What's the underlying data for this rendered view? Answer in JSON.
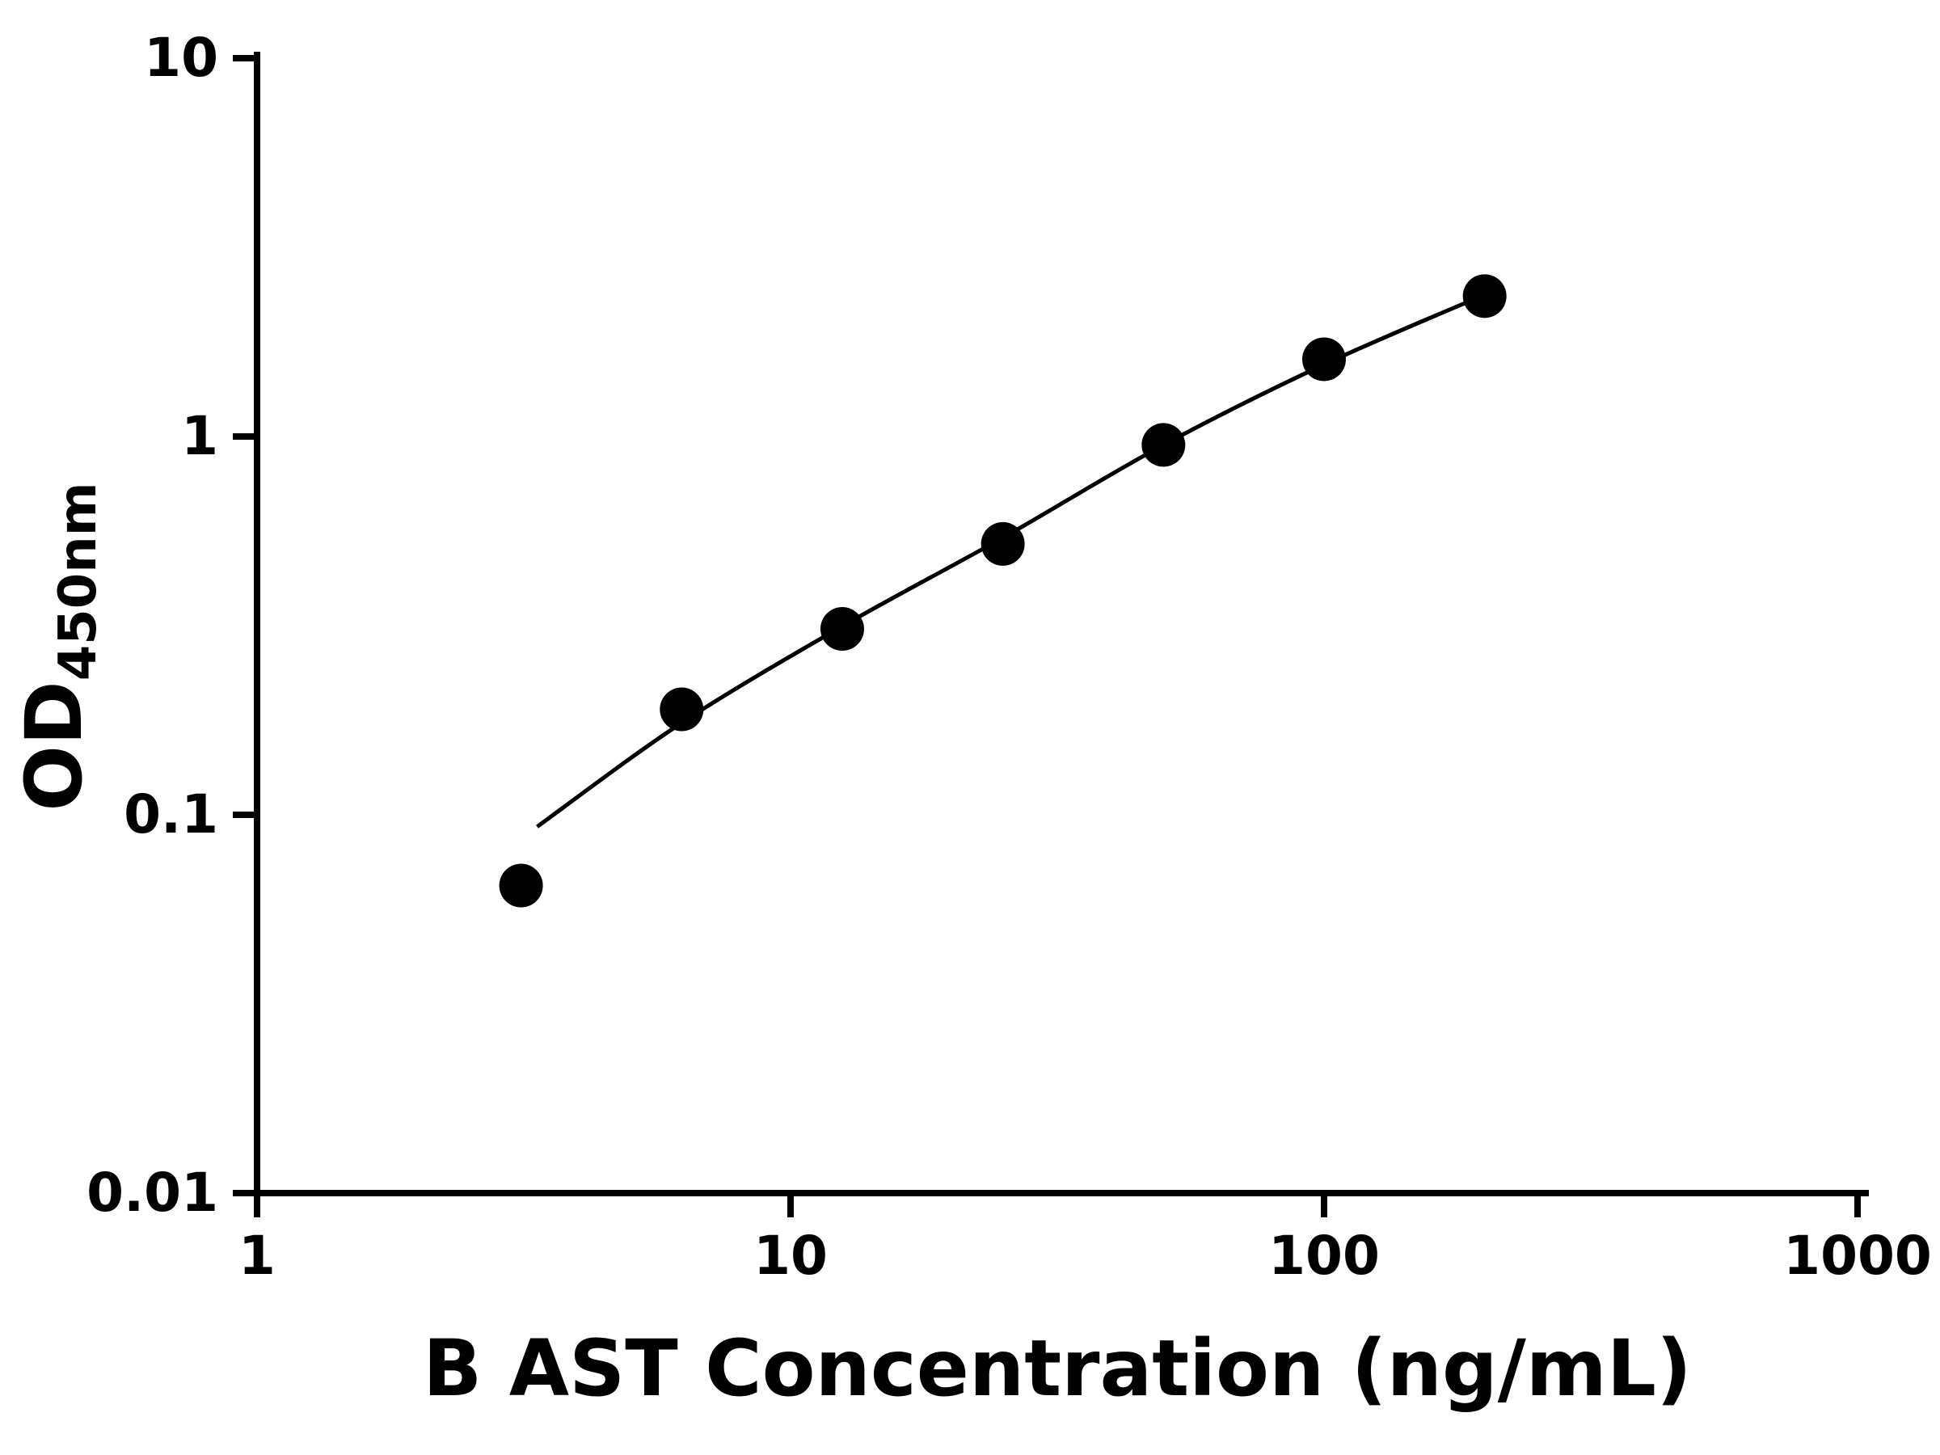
{
  "page": {
    "background_color": "#ffffff",
    "foreground_color": "#000000"
  },
  "chart_data": {
    "type": "scatter",
    "title": "",
    "xlabel": "B AST Concentration (ng/mL)",
    "ylabel": "OD",
    "ylabel_subscript": "450nm",
    "x_scale": "log",
    "y_scale": "log",
    "xlim": [
      1,
      1000
    ],
    "ylim": [
      0.01,
      10
    ],
    "x_ticks": [
      1,
      10,
      100,
      1000
    ],
    "x_tick_labels": [
      "1",
      "10",
      "100",
      "1000"
    ],
    "y_ticks": [
      0.01,
      0.1,
      1,
      10
    ],
    "y_tick_labels": [
      "0.01",
      "0.1",
      "1",
      "10"
    ],
    "grid": false,
    "legend": null,
    "marker_color": "#000000",
    "line_color": "#000000",
    "points": [
      {
        "x": 3.125,
        "y": 0.065
      },
      {
        "x": 6.25,
        "y": 0.19
      },
      {
        "x": 12.5,
        "y": 0.31
      },
      {
        "x": 25,
        "y": 0.52
      },
      {
        "x": 50,
        "y": 0.95
      },
      {
        "x": 100,
        "y": 1.6
      },
      {
        "x": 200,
        "y": 2.35
      }
    ],
    "fit_curve": [
      [
        3.35,
        0.093
      ],
      [
        6.25,
        0.175
      ],
      [
        12.5,
        0.315
      ],
      [
        25,
        0.54
      ],
      [
        50,
        0.95
      ],
      [
        100,
        1.55
      ],
      [
        200,
        2.37
      ]
    ]
  }
}
